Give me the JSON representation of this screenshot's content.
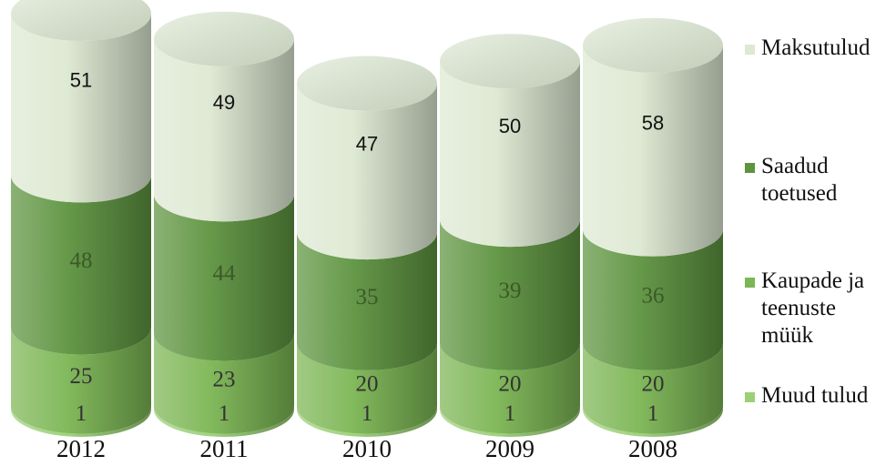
{
  "chart_data": {
    "type": "bar",
    "stacked": true,
    "style": "3d-cylinder",
    "categories": [
      "2012",
      "2011",
      "2010",
      "2009",
      "2008"
    ],
    "series": [
      {
        "name": "Muud tulud",
        "values": [
          1,
          1,
          1,
          1,
          1
        ],
        "color": "#9cd078"
      },
      {
        "name": "Kaupade ja teenuste müük",
        "values": [
          25,
          23,
          20,
          20,
          20
        ],
        "color": "#7cb654"
      },
      {
        "name": "Saadud toetused",
        "values": [
          48,
          44,
          35,
          39,
          36
        ],
        "color": "#5e9440"
      },
      {
        "name": "Maksutulud",
        "values": [
          51,
          49,
          47,
          50,
          58
        ],
        "color": "#dde9d2"
      }
    ],
    "legend_order": [
      "Maksutulud",
      "Saadud toetused",
      "Kaupade ja teenuste müük",
      "Muud tulud"
    ],
    "legend_position": "right",
    "grid": false,
    "title": "",
    "xlabel": "",
    "ylabel": ""
  }
}
